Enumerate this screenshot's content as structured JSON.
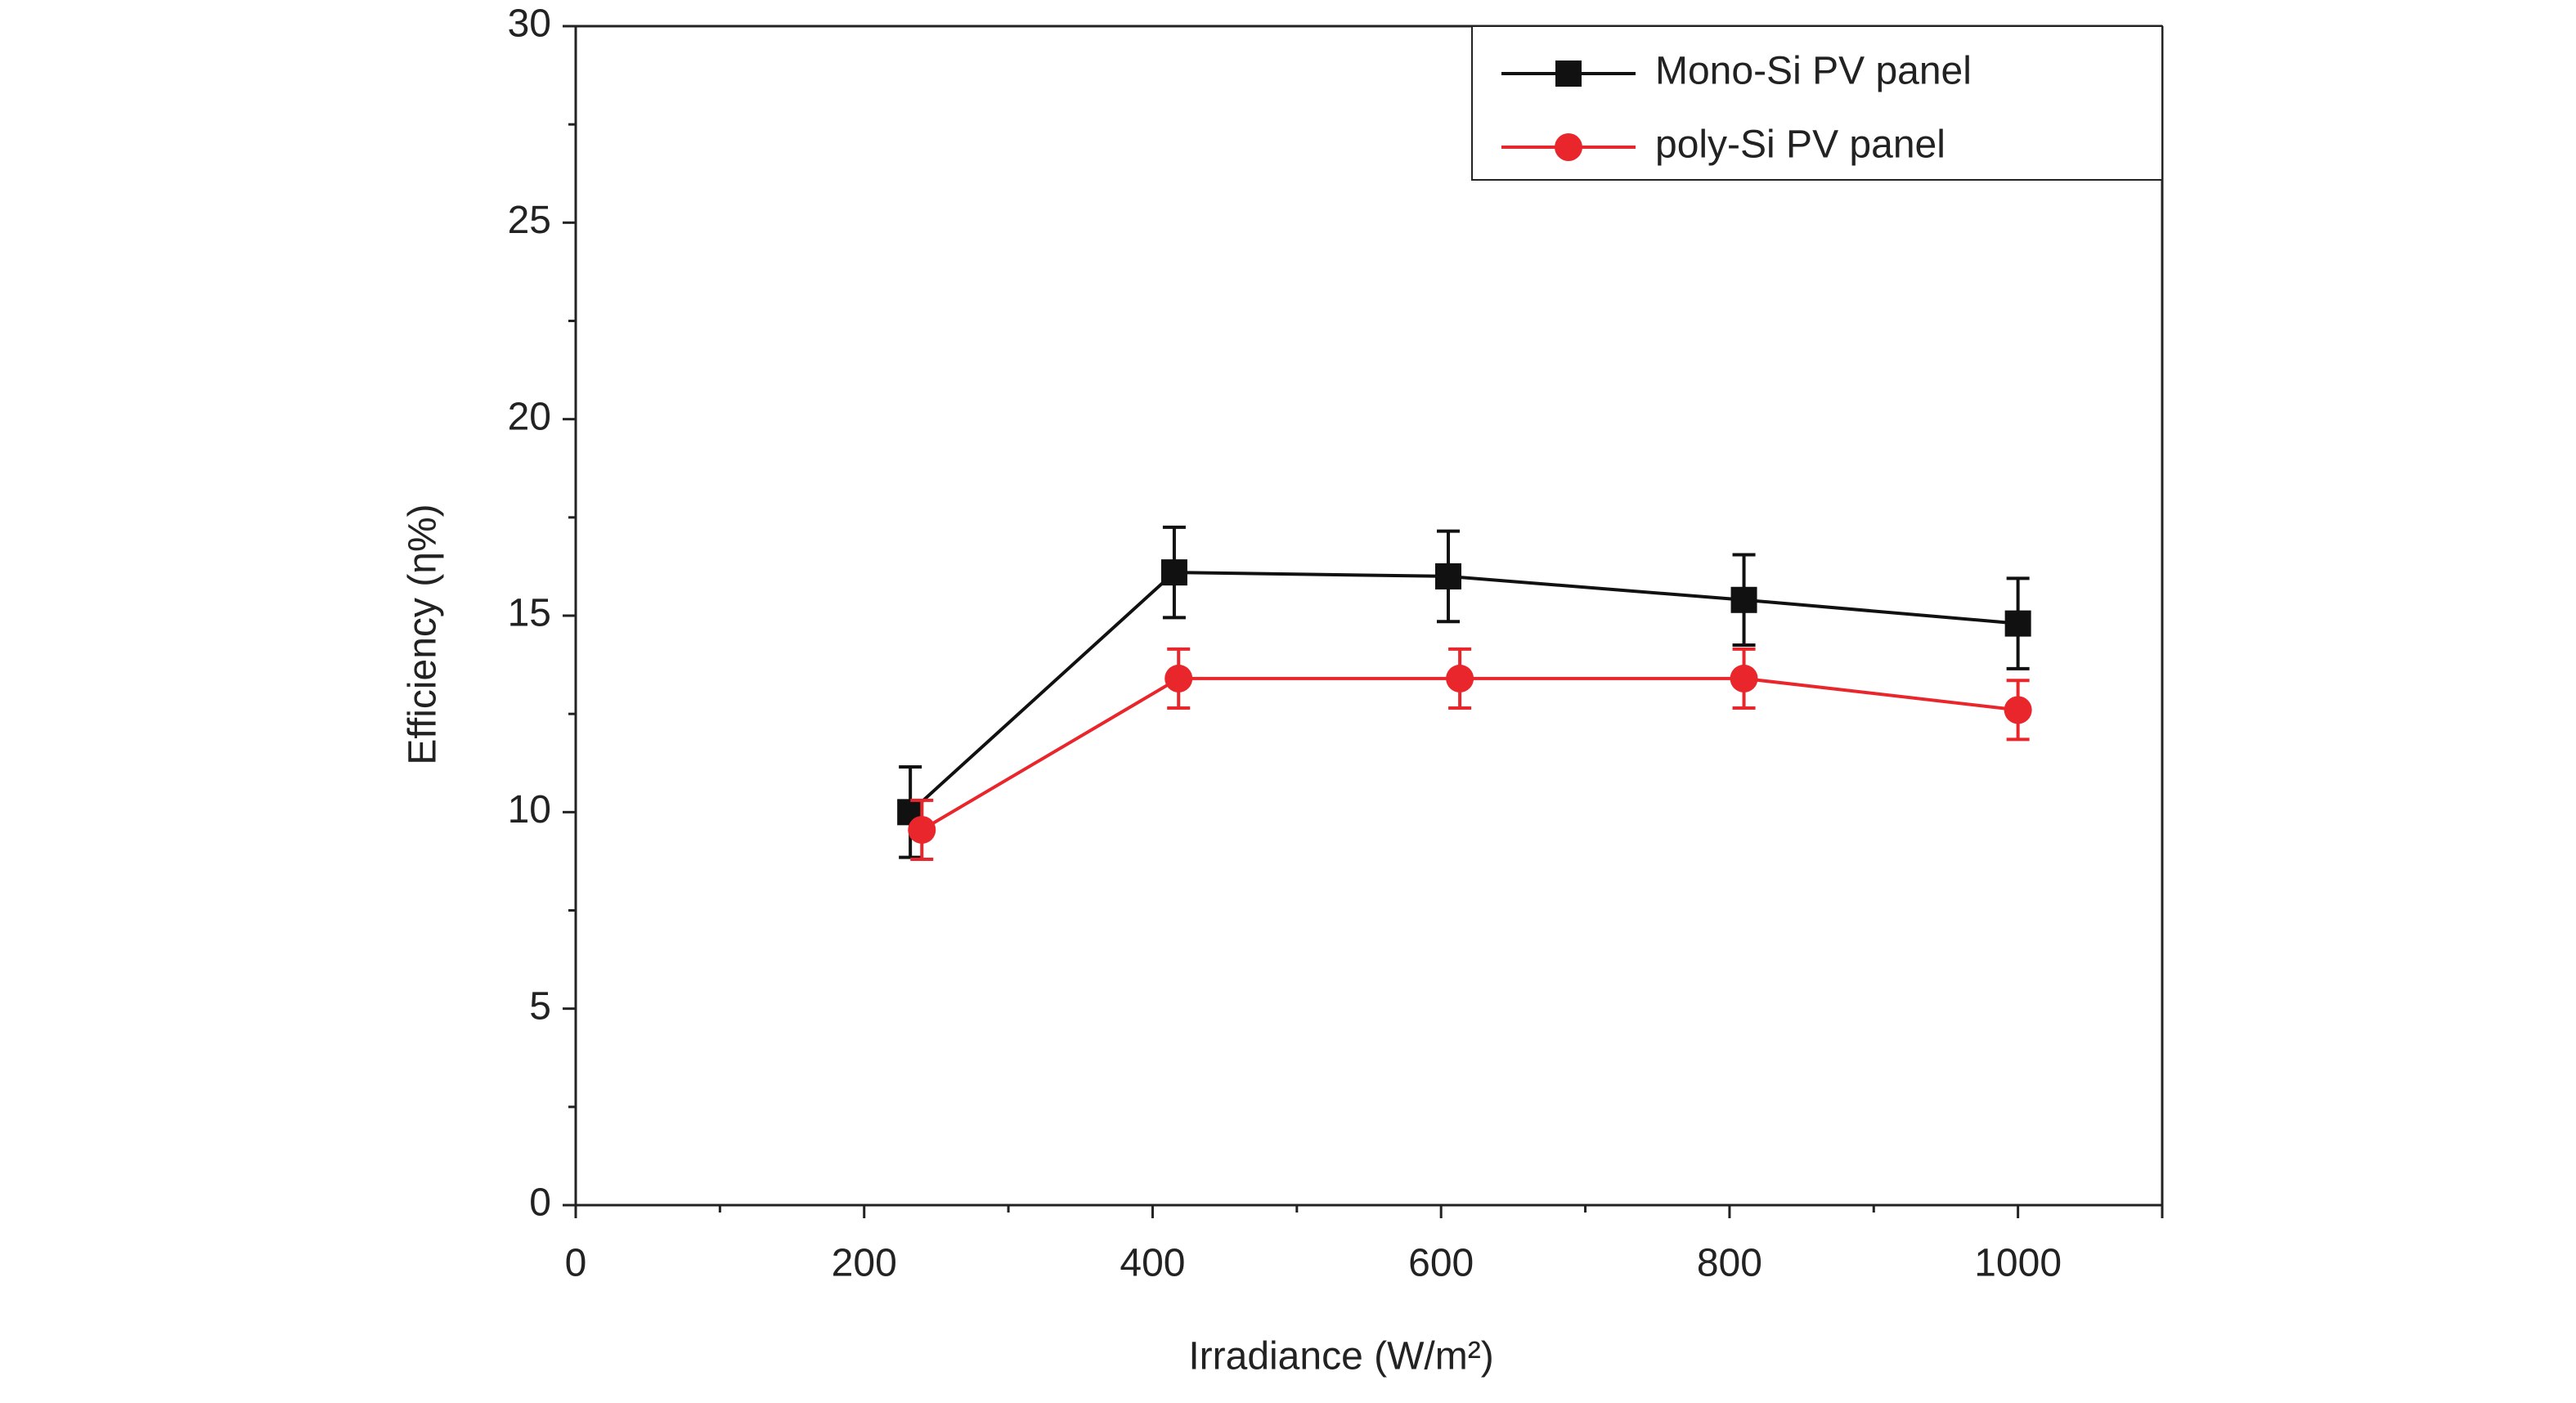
{
  "chart_data": {
    "type": "line",
    "x_label": "Irradiance (W/m²)",
    "y_label": "Efficiency (η%)",
    "xlim": [
      0,
      1100
    ],
    "xticks": [
      0,
      200,
      400,
      600,
      800,
      1000
    ],
    "ylim": [
      0,
      30
    ],
    "yticks": [
      0,
      5,
      10,
      15,
      20,
      25,
      30
    ],
    "legend": "upper right",
    "series": [
      {
        "name": "Mono-Si PV panel",
        "color": "#111111",
        "marker": "square",
        "x": [
          232,
          415,
          605,
          810,
          1000
        ],
        "values": [
          10.0,
          16.1,
          16.0,
          15.4,
          14.8
        ],
        "error": [
          1.15,
          1.15,
          1.15,
          1.15,
          1.15
        ]
      },
      {
        "name": "poly-Si PV panel",
        "color": "#e8262b",
        "marker": "circle",
        "x": [
          240,
          418,
          613,
          810,
          1000
        ],
        "values": [
          9.55,
          13.4,
          13.4,
          13.4,
          12.6
        ],
        "error": [
          0.75,
          0.75,
          0.75,
          0.75,
          0.75
        ]
      }
    ]
  }
}
